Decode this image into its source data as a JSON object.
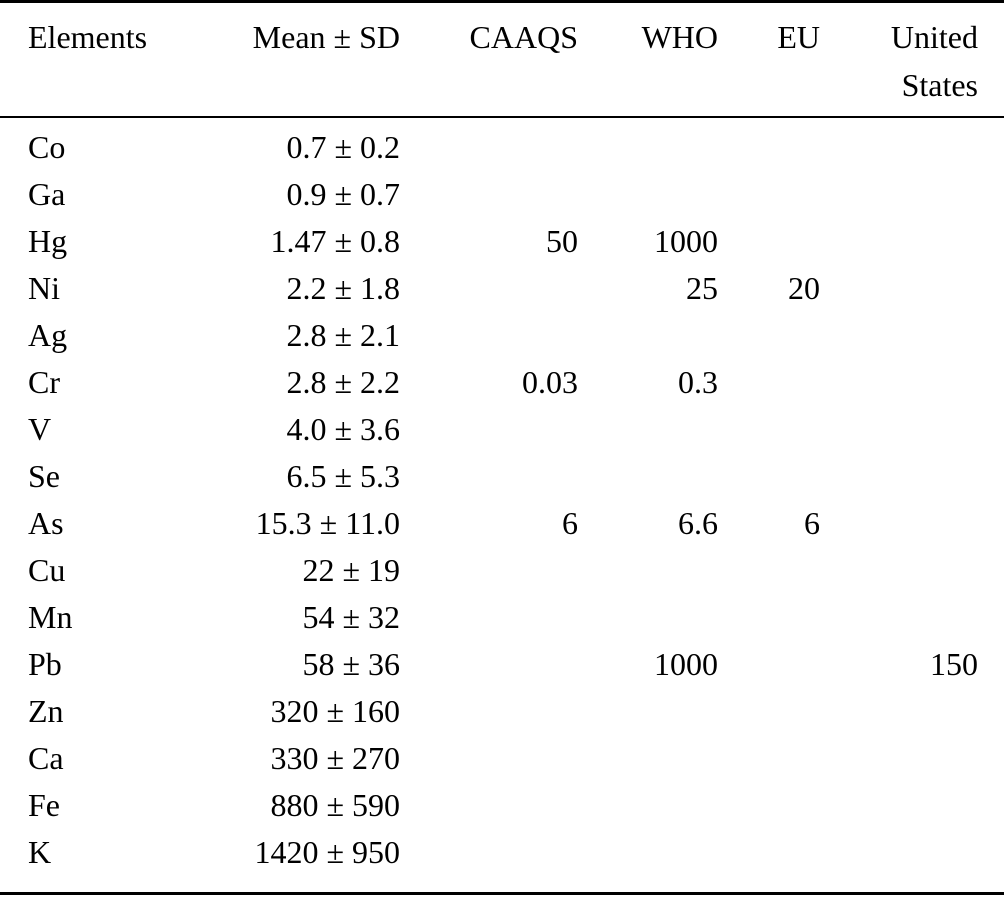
{
  "table": {
    "columns": [
      {
        "key": "element",
        "label": "Elements",
        "align": "left"
      },
      {
        "key": "mean_sd",
        "label": "Mean ± SD",
        "align": "right"
      },
      {
        "key": "caaqs",
        "label": "CAAQS",
        "align": "right"
      },
      {
        "key": "who",
        "label": "WHO",
        "align": "right"
      },
      {
        "key": "eu",
        "label": "EU",
        "align": "right"
      },
      {
        "key": "us",
        "label": "United States",
        "align": "right"
      }
    ],
    "rows": [
      {
        "element": "Co",
        "mean_sd": "0.7 ± 0.2",
        "caaqs": "",
        "who": "",
        "eu": "",
        "us": ""
      },
      {
        "element": "Ga",
        "mean_sd": "0.9 ± 0.7",
        "caaqs": "",
        "who": "",
        "eu": "",
        "us": ""
      },
      {
        "element": "Hg",
        "mean_sd": "1.47 ± 0.8",
        "caaqs": "50",
        "who": "1000",
        "eu": "",
        "us": ""
      },
      {
        "element": "Ni",
        "mean_sd": "2.2 ± 1.8",
        "caaqs": "",
        "who": "25",
        "eu": "20",
        "us": ""
      },
      {
        "element": "Ag",
        "mean_sd": "2.8 ± 2.1",
        "caaqs": "",
        "who": "",
        "eu": "",
        "us": ""
      },
      {
        "element": "Cr",
        "mean_sd": "2.8 ± 2.2",
        "caaqs": "0.03",
        "who": "0.3",
        "eu": "",
        "us": ""
      },
      {
        "element": "V",
        "mean_sd": "4.0 ± 3.6",
        "caaqs": "",
        "who": "",
        "eu": "",
        "us": ""
      },
      {
        "element": "Se",
        "mean_sd": "6.5 ± 5.3",
        "caaqs": "",
        "who": "",
        "eu": "",
        "us": ""
      },
      {
        "element": "As",
        "mean_sd": "15.3 ± 11.0",
        "caaqs": "6",
        "who": "6.6",
        "eu": "6",
        "us": ""
      },
      {
        "element": "Cu",
        "mean_sd": "22 ± 19",
        "caaqs": "",
        "who": "",
        "eu": "",
        "us": ""
      },
      {
        "element": "Mn",
        "mean_sd": "54 ± 32",
        "caaqs": "",
        "who": "",
        "eu": "",
        "us": ""
      },
      {
        "element": "Pb",
        "mean_sd": "58 ± 36",
        "caaqs": "",
        "who": "1000",
        "eu": "",
        "us": "150"
      },
      {
        "element": "Zn",
        "mean_sd": "320 ± 160",
        "caaqs": "",
        "who": "",
        "eu": "",
        "us": ""
      },
      {
        "element": "Ca",
        "mean_sd": "330 ± 270",
        "caaqs": "",
        "who": "",
        "eu": "",
        "us": ""
      },
      {
        "element": "Fe",
        "mean_sd": "880 ± 590",
        "caaqs": "",
        "who": "",
        "eu": "",
        "us": ""
      },
      {
        "element": "K",
        "mean_sd": "1420 ± 950",
        "caaqs": "",
        "who": "",
        "eu": "",
        "us": ""
      }
    ]
  },
  "colors": {
    "text": "#000000",
    "background": "#ffffff",
    "rule": "#000000"
  }
}
